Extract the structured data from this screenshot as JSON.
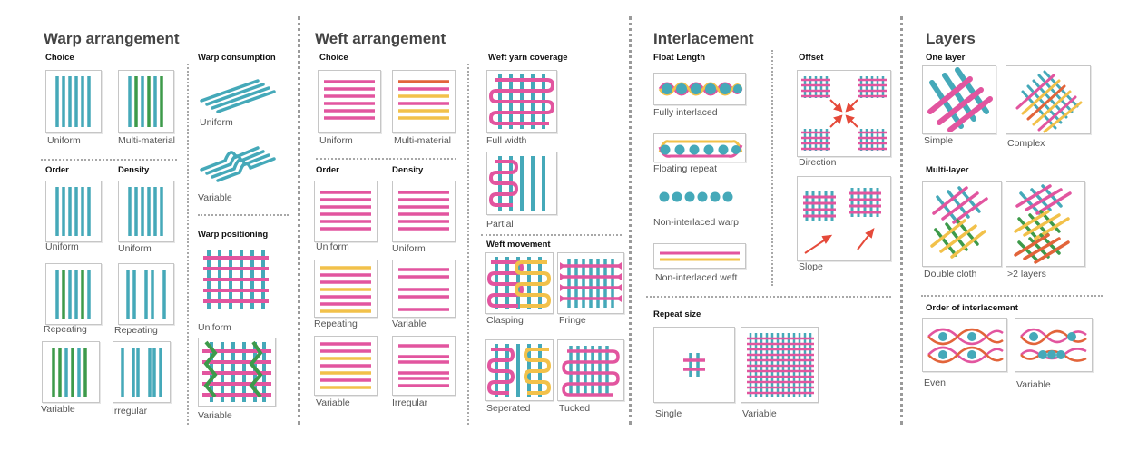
{
  "colors": {
    "teal": "#45a9b9",
    "pink": "#e2559f",
    "green": "#3d9a4a",
    "yellow": "#f2c14a",
    "orange": "#e2643a",
    "red": "#e54a3a"
  },
  "warp": {
    "title": "Warp arrangement",
    "choice": {
      "title": "Choice",
      "uniform": "Uniform",
      "multi": "Multi-material"
    },
    "order": {
      "title": "Order",
      "uniform": "Uniform",
      "repeating": "Repeating",
      "variable": "Variable"
    },
    "density": {
      "title": "Density",
      "uniform": "Uniform",
      "repeating": "Repeating",
      "irregular": "Irregular"
    },
    "consumption": {
      "title": "Warp consumption",
      "uniform": "Uniform",
      "variable": "Variable"
    },
    "positioning": {
      "title": "Warp positioning",
      "uniform": "Uniform",
      "variable": "Variable"
    }
  },
  "weft": {
    "title": "Weft arrangement",
    "choice": {
      "title": "Choice",
      "uniform": "Uniform",
      "multi": "Multi-material"
    },
    "order": {
      "title": "Order",
      "uniform": "Uniform",
      "repeating": "Repeating",
      "variable": "Variable"
    },
    "density": {
      "title": "Density",
      "uniform": "Uniform",
      "variable": "Variable",
      "irregular": "Irregular"
    },
    "coverage": {
      "title": "Weft yarn coverage",
      "full": "Full width",
      "partial": "Partial"
    },
    "movement": {
      "title": "Weft movement",
      "clasping": "Clasping",
      "fringe": "Fringe",
      "seperated": "Seperated",
      "tucked": "Tucked"
    }
  },
  "interlacement": {
    "title": "Interlacement",
    "float": {
      "title": "Float Length",
      "fully": "Fully interlaced",
      "floating": "Floating repeat",
      "ni_warp": "Non-interlaced warp",
      "ni_weft": "Non-interlaced weft"
    },
    "offset": {
      "title": "Offset",
      "direction": "Direction",
      "slope": "Slope"
    },
    "repeat": {
      "title": "Repeat size",
      "single": "Single",
      "variable": "Variable"
    }
  },
  "layers": {
    "title": "Layers",
    "one": {
      "title": "One layer",
      "simple": "Simple",
      "complex": "Complex"
    },
    "multi": {
      "title": "Multi-layer",
      "double": "Double cloth",
      "more": ">2 layers"
    },
    "order": {
      "title": "Order of interlacement",
      "even": "Even",
      "variable": "Variable"
    }
  }
}
